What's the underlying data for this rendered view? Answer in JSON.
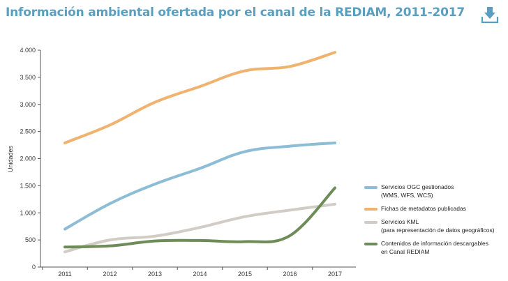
{
  "header": {
    "title": "Información ambiental ofertada por el canal de la REDIAM, 2011-2017",
    "download_icon": "download-icon"
  },
  "chart_data": {
    "type": "line",
    "title": "Información ambiental ofertada por el canal de la REDIAM, 2011-2017",
    "ylabel": "Unidades",
    "xlabel": "",
    "x": [
      "2011",
      "2012",
      "2013",
      "2014",
      "2015",
      "2016",
      "2017"
    ],
    "ylim": [
      0,
      4000
    ],
    "yticks": [
      0,
      500,
      1000,
      1500,
      2000,
      2500,
      3000,
      3500,
      4000
    ],
    "ytick_labels": [
      "0",
      "500",
      "1.000",
      "1.500",
      "2.000",
      "2.500",
      "3.000",
      "3.500",
      "4.000"
    ],
    "grid": false,
    "legend_position": "right",
    "series": [
      {
        "name": "Servicios OGC gestionados (WMS, WFS, WCS)",
        "name_lines": [
          "Servicios OGC gestionados",
          "(WMS, WFS, WCS)"
        ],
        "color": "#8dbdd6",
        "values": [
          700,
          1170,
          1530,
          1820,
          2130,
          2230,
          2290
        ]
      },
      {
        "name": "Fichas de metadatos publicadas",
        "name_lines": [
          "Fichas de metadatos publicadas"
        ],
        "color": "#efb36f",
        "values": [
          2290,
          2620,
          3040,
          3330,
          3620,
          3700,
          3960
        ]
      },
      {
        "name": "Servicios KML (para representación de datos geográficos)",
        "name_lines": [
          "Servicios KML",
          "(para representación de datos geográficos)"
        ],
        "color": "#d1ccc5",
        "values": [
          280,
          500,
          570,
          730,
          930,
          1050,
          1160
        ]
      },
      {
        "name": "Contenidos de información descargables en Canal REDIAM",
        "name_lines": [
          "Contenidos de información descargables",
          "en Canal REDIAM"
        ],
        "color": "#6e8c57",
        "values": [
          370,
          390,
          480,
          490,
          470,
          580,
          1460
        ]
      }
    ]
  }
}
